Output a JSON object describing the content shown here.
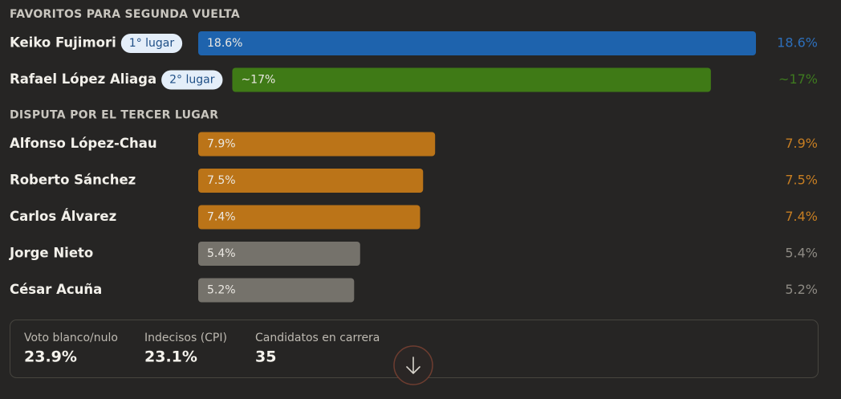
{
  "sections": [
    {
      "title": "FAVORITOS PARA SEGUNDA VUELTA",
      "rows": [
        {
          "name": "Keiko Fujimori",
          "badge": "1° lugar",
          "value": 18.6,
          "value_label": "18.6%",
          "color": "#1e63ad",
          "text_color": "#2d6fbb"
        },
        {
          "name": "Rafael López Aliaga",
          "badge": "2° lugar",
          "value": 17,
          "value_label": "~17%",
          "color": "#3f7a16",
          "text_color": "#3e7a1f"
        }
      ]
    },
    {
      "title": "DISPUTA POR EL TERCER LUGAR",
      "rows": [
        {
          "name": "Alfonso López-Chau",
          "value": 7.9,
          "value_label": "7.9%",
          "color": "#bb7418",
          "text_color": "#c77e22"
        },
        {
          "name": "Roberto Sánchez",
          "value": 7.5,
          "value_label": "7.5%",
          "color": "#bb7418",
          "text_color": "#c77e22"
        },
        {
          "name": "Carlos Álvarez",
          "value": 7.4,
          "value_label": "7.4%",
          "color": "#bb7418",
          "text_color": "#c77e22"
        },
        {
          "name": "Jorge Nieto",
          "value": 5.4,
          "value_label": "5.4%",
          "color": "#75726b",
          "text_color": "#8d8a83"
        },
        {
          "name": "César Acuña",
          "value": 5.2,
          "value_label": "5.2%",
          "color": "#75726b",
          "text_color": "#8d8a83"
        }
      ]
    }
  ],
  "stats": [
    {
      "label": "Voto blanco/nulo",
      "value": "23.9%"
    },
    {
      "label": "Indecisos (CPI)",
      "value": "23.1%"
    },
    {
      "label": "Candidatos en carrera",
      "value": "35"
    }
  ]
}
